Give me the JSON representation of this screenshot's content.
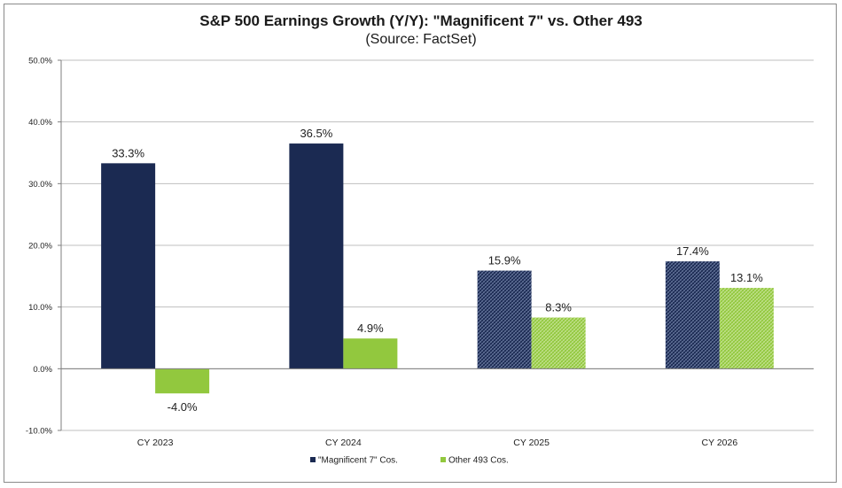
{
  "chart_data": {
    "type": "bar",
    "title": "S&P 500 Earnings Growth (Y/Y): \"Magnificent 7\" vs. Other 493",
    "subtitle": "(Source: FactSet)",
    "categories": [
      "CY 2023",
      "CY 2024",
      "CY 2025",
      "CY 2026"
    ],
    "series": [
      {
        "name": "\"Magnificent 7\" Cos.",
        "color": "#1b2a52",
        "values": [
          33.3,
          36.5,
          15.9,
          17.4
        ],
        "labels": [
          "33.3%",
          "36.5%",
          "15.9%",
          "17.4%"
        ],
        "estimated": [
          false,
          false,
          true,
          true
        ]
      },
      {
        "name": "Other 493 Cos.",
        "color": "#92c83e",
        "values": [
          -4.0,
          4.9,
          8.3,
          13.1
        ],
        "labels": [
          "-4.0%",
          "4.9%",
          "8.3%",
          "13.1%"
        ],
        "estimated": [
          false,
          false,
          true,
          true
        ]
      }
    ],
    "ylim": [
      -10,
      50
    ],
    "yticks": [
      -10,
      0,
      10,
      20,
      30,
      40,
      50
    ],
    "ytick_labels": [
      "-10.0%",
      "0.0%",
      "10.0%",
      "20.0%",
      "30.0%",
      "40.0%",
      "50.0%"
    ],
    "xlabel": "",
    "ylabel": "",
    "grid": true,
    "legend_position": "bottom"
  }
}
